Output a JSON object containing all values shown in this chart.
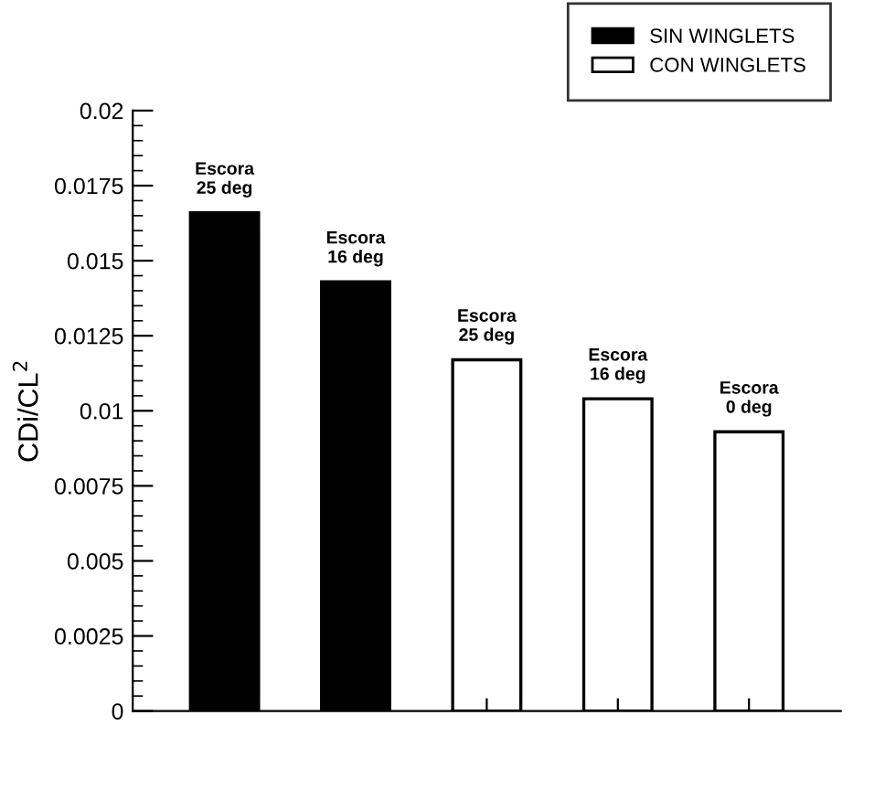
{
  "chart_data": {
    "type": "bar",
    "ylabel": "CDi/CL$^{2}$",
    "categories": [
      null,
      null,
      null,
      null,
      null
    ],
    "series": [
      {
        "name": "SIN WINGLETS",
        "color": "#000000",
        "values": [
          0.0166,
          0.0143,
          null,
          null,
          null
        ]
      },
      {
        "name": "CON WINGLETS",
        "color": "#ffffff",
        "values": [
          null,
          null,
          0.0117,
          0.0104,
          0.0093
        ]
      }
    ],
    "annotations": [
      {
        "text": "Escora\n25 deg",
        "y": 0.0166
      },
      {
        "text": "Escora\n16 deg",
        "y": 0.0143
      },
      {
        "text": "Escora\n25 deg",
        "y": 0.0117
      },
      {
        "text": "Escora\n16 deg",
        "y": 0.0104
      },
      {
        "text": "Escora\n0 deg",
        "y": 0.0093
      }
    ],
    "ylim": [
      0,
      0.02
    ],
    "yticks": [
      0,
      0.0025,
      0.005,
      0.0075,
      0.01,
      0.0125,
      0.015,
      0.0175,
      0.02
    ],
    "legend": "top right",
    "grid": false
  }
}
